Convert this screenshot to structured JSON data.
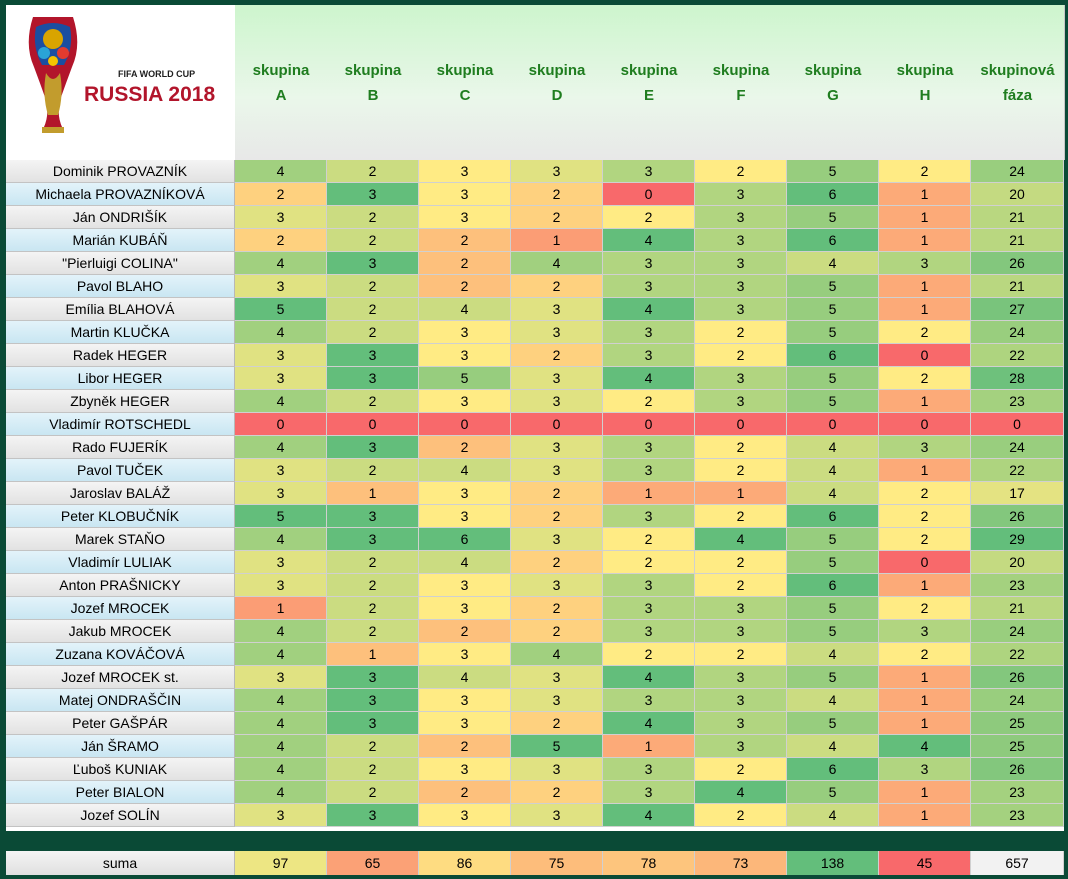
{
  "logo": {
    "line1": "FIFA WORLD CUP",
    "line2": "RUSSIA 2018"
  },
  "headers": [
    "skupina\nA",
    "skupina\nB",
    "skupina\nC",
    "skupina\nD",
    "skupina\nE",
    "skupina\nF",
    "skupina\nG",
    "skupina\nH",
    "skupinová\nfáza"
  ],
  "rows": [
    {
      "name": "Dominik PROVAZNÍK",
      "values": [
        4,
        2,
        3,
        3,
        3,
        2,
        5,
        2,
        24
      ]
    },
    {
      "name": "Michaela PROVAZNÍKOVÁ",
      "values": [
        2,
        3,
        3,
        2,
        0,
        3,
        6,
        1,
        20
      ]
    },
    {
      "name": "Ján ONDRIŠÍK",
      "values": [
        3,
        2,
        3,
        2,
        2,
        3,
        5,
        1,
        21
      ]
    },
    {
      "name": "Marián KUBÁŇ",
      "values": [
        2,
        2,
        2,
        1,
        4,
        3,
        6,
        1,
        21
      ]
    },
    {
      "name": "\"Pierluigi COLINA\"",
      "values": [
        4,
        3,
        2,
        4,
        3,
        3,
        4,
        3,
        26
      ]
    },
    {
      "name": "Pavol BLAHO",
      "values": [
        3,
        2,
        2,
        2,
        3,
        3,
        5,
        1,
        21
      ]
    },
    {
      "name": "Emília BLAHOVÁ",
      "values": [
        5,
        2,
        4,
        3,
        4,
        3,
        5,
        1,
        27
      ]
    },
    {
      "name": "Martin KLUČKA",
      "values": [
        4,
        2,
        3,
        3,
        3,
        2,
        5,
        2,
        24
      ]
    },
    {
      "name": "Radek HEGER",
      "values": [
        3,
        3,
        3,
        2,
        3,
        2,
        6,
        0,
        22
      ]
    },
    {
      "name": "Libor HEGER",
      "values": [
        3,
        3,
        5,
        3,
        4,
        3,
        5,
        2,
        28
      ]
    },
    {
      "name": "Zbyněk HEGER",
      "values": [
        4,
        2,
        3,
        3,
        2,
        3,
        5,
        1,
        23
      ]
    },
    {
      "name": "Vladimír ROTSCHEDL",
      "values": [
        0,
        0,
        0,
        0,
        0,
        0,
        0,
        0,
        0
      ]
    },
    {
      "name": "Rado FUJERÍK",
      "values": [
        4,
        3,
        2,
        3,
        3,
        2,
        4,
        3,
        24
      ]
    },
    {
      "name": "Pavol TUČEK",
      "values": [
        3,
        2,
        4,
        3,
        3,
        2,
        4,
        1,
        22
      ]
    },
    {
      "name": "Jaroslav BALÁŽ",
      "values": [
        3,
        1,
        3,
        2,
        1,
        1,
        4,
        2,
        17
      ]
    },
    {
      "name": "Peter KLOBUČNÍK",
      "values": [
        5,
        3,
        3,
        2,
        3,
        2,
        6,
        2,
        26
      ]
    },
    {
      "name": "Marek STAŇO",
      "values": [
        4,
        3,
        6,
        3,
        2,
        4,
        5,
        2,
        29
      ]
    },
    {
      "name": "Vladimír LULIAK",
      "values": [
        3,
        2,
        4,
        2,
        2,
        2,
        5,
        0,
        20
      ]
    },
    {
      "name": "Anton PRAŠNICKY",
      "values": [
        3,
        2,
        3,
        3,
        3,
        2,
        6,
        1,
        23
      ]
    },
    {
      "name": "Jozef MROCEK",
      "values": [
        1,
        2,
        3,
        2,
        3,
        3,
        5,
        2,
        21
      ]
    },
    {
      "name": "Jakub MROCEK",
      "values": [
        4,
        2,
        2,
        2,
        3,
        3,
        5,
        3,
        24
      ]
    },
    {
      "name": "Zuzana KOVÁČOVÁ",
      "values": [
        4,
        1,
        3,
        4,
        2,
        2,
        4,
        2,
        22
      ]
    },
    {
      "name": "Jozef MROCEK st.",
      "values": [
        3,
        3,
        4,
        3,
        4,
        3,
        5,
        1,
        26
      ]
    },
    {
      "name": "Matej ONDRAŠČIN",
      "values": [
        4,
        3,
        3,
        3,
        3,
        3,
        4,
        1,
        24
      ]
    },
    {
      "name": "Peter GAŠPÁR",
      "values": [
        4,
        3,
        3,
        2,
        4,
        3,
        5,
        1,
        25
      ]
    },
    {
      "name": "Ján ŠRAMO",
      "values": [
        4,
        2,
        2,
        5,
        1,
        3,
        4,
        4,
        25
      ]
    },
    {
      "name": "Ľuboš KUNIAK",
      "values": [
        4,
        2,
        3,
        3,
        3,
        2,
        6,
        3,
        26
      ]
    },
    {
      "name": "Peter BIALON",
      "values": [
        4,
        2,
        2,
        2,
        3,
        4,
        5,
        1,
        23
      ]
    },
    {
      "name": "Jozef SOLÍN",
      "values": [
        3,
        3,
        3,
        3,
        4,
        2,
        4,
        1,
        23
      ]
    }
  ],
  "sum": {
    "label": "suma",
    "values": [
      97,
      65,
      86,
      75,
      78,
      73,
      138,
      45,
      657
    ]
  },
  "colors": {
    "background": "#0a4a36",
    "header_text": "#1f7d1f",
    "scale_low": "#f8696b",
    "scale_mid": "#ffeb84",
    "scale_high": "#63be7b"
  }
}
